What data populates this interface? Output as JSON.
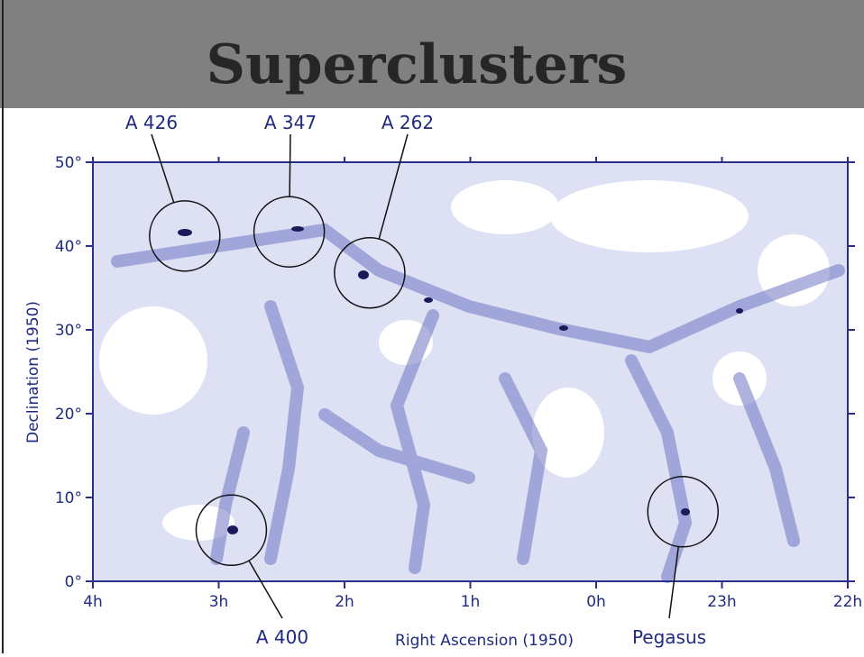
{
  "title": "Superclusters",
  "chart_data": {
    "type": "sky-map",
    "xlabel": "Right Ascension (1950)",
    "ylabel": "Declination (1950)",
    "xlim": [
      4,
      -2
    ],
    "ylim": [
      0,
      50
    ],
    "xticks": [
      {
        "value": 4,
        "label": "4h"
      },
      {
        "value": 3,
        "label": "3h"
      },
      {
        "value": 2,
        "label": "2h"
      },
      {
        "value": 1,
        "label": "1h"
      },
      {
        "value": 0,
        "label": "0h"
      },
      {
        "value": -1,
        "label": "23h"
      },
      {
        "value": -2,
        "label": "22h"
      }
    ],
    "yticks": [
      {
        "value": 0,
        "label": "0°"
      },
      {
        "value": 10,
        "label": "10°"
      },
      {
        "value": 20,
        "label": "20°"
      },
      {
        "value": 30,
        "label": "30°"
      },
      {
        "value": 40,
        "label": "40°"
      },
      {
        "value": 50,
        "label": "50°"
      }
    ],
    "annotations": [
      {
        "label": "A 426",
        "ra": 3.27,
        "dec": 41.2
      },
      {
        "label": "A 347",
        "ra": 2.44,
        "dec": 41.7
      },
      {
        "label": "A 262",
        "ra": 1.8,
        "dec": 36.8
      },
      {
        "label": "A 400",
        "ra": 2.9,
        "dec": 6.1
      },
      {
        "label": "Pegasus",
        "ra": -0.69,
        "dec": 8.3
      }
    ]
  }
}
